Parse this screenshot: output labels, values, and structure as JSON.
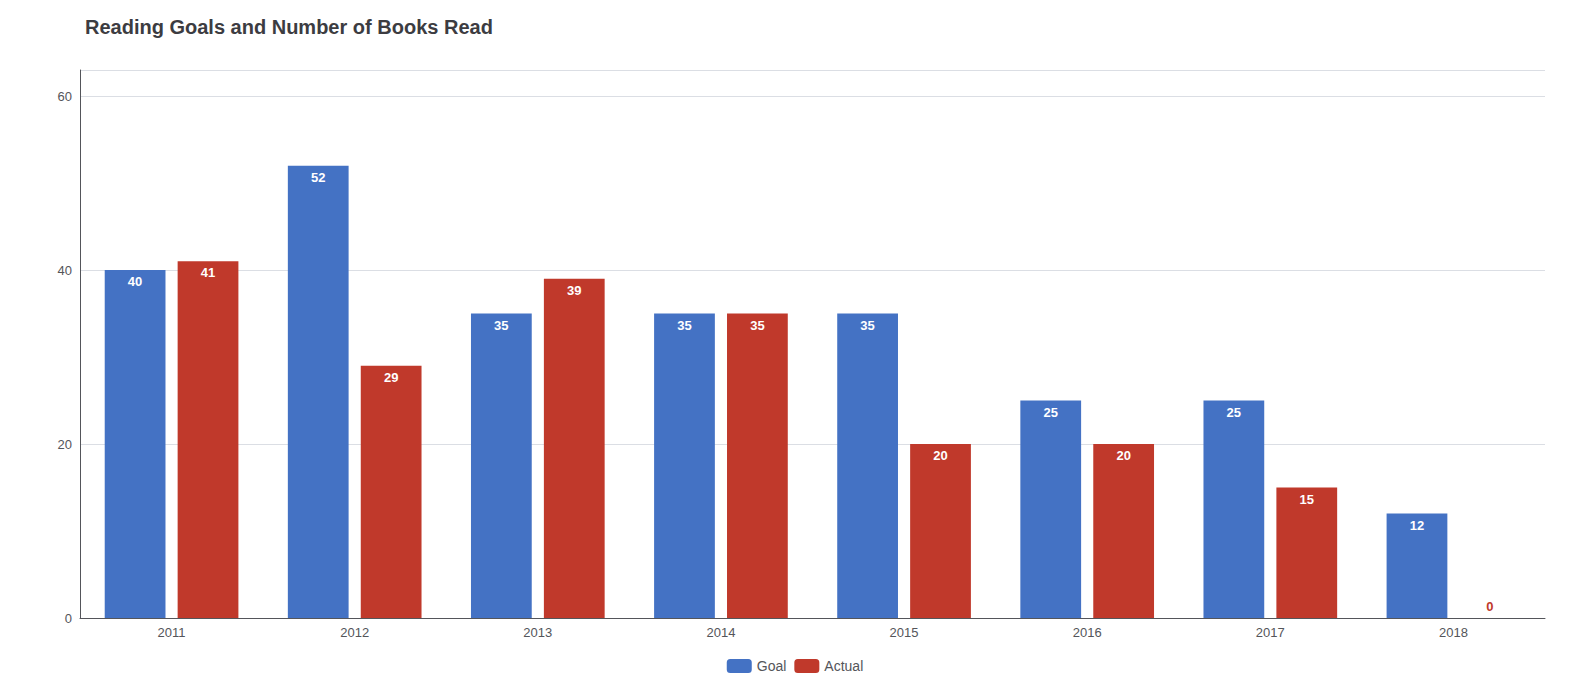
{
  "chart_data": {
    "type": "bar",
    "title": "Reading Goals and Number of Books Read",
    "categories": [
      "2011",
      "2012",
      "2013",
      "2014",
      "2015",
      "2016",
      "2017",
      "2018"
    ],
    "series": [
      {
        "name": "Goal",
        "color": "#4472C4",
        "values": [
          40,
          52,
          35,
          35,
          35,
          25,
          25,
          12
        ]
      },
      {
        "name": "Actual",
        "color": "#C0392B",
        "values": [
          41,
          29,
          39,
          35,
          20,
          20,
          15,
          0
        ]
      }
    ],
    "ylim": [
      0,
      63
    ],
    "yticks": [
      0,
      20,
      40,
      60
    ],
    "grid": true,
    "legend": "bottom",
    "data_labels": true
  }
}
